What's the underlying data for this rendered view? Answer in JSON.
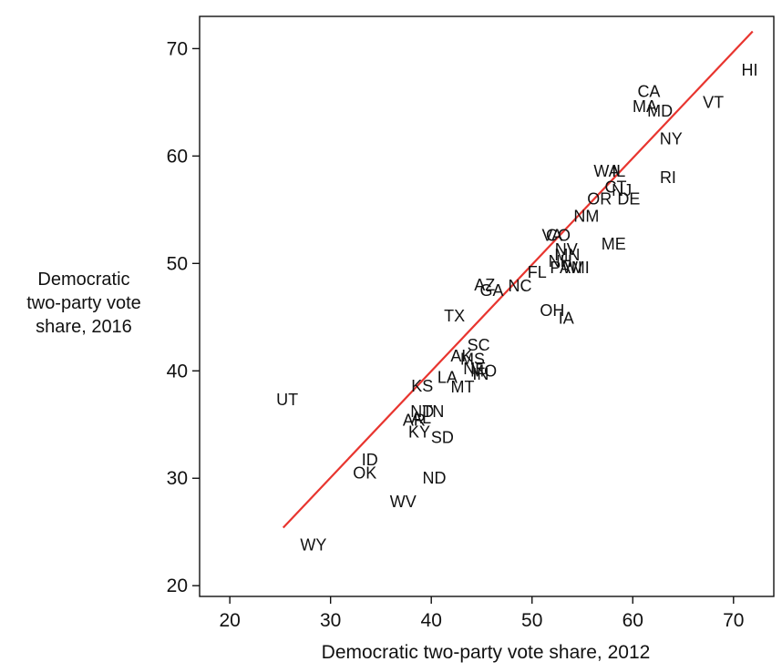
{
  "chart_data": {
    "type": "scatter",
    "title": "",
    "xlabel": "Democratic two-party vote share, 2012",
    "ylabel_lines": [
      "Democratic",
      "two-party vote",
      "share, 2016"
    ],
    "xlim": [
      17,
      74
    ],
    "ylim": [
      19,
      73
    ],
    "xticks": [
      20,
      30,
      40,
      50,
      60,
      70
    ],
    "yticks": [
      20,
      30,
      40,
      50,
      60,
      70
    ],
    "grid": false,
    "legend": "none",
    "marker": "state abbreviation text",
    "fit_line": {
      "color": "#e8352f",
      "from": [
        25.3,
        25.4
      ],
      "to": [
        71.9,
        71.6
      ]
    },
    "points": [
      {
        "label": "HI",
        "x": 71.6,
        "y": 68.0
      },
      {
        "label": "VT",
        "x": 68.0,
        "y": 65.0
      },
      {
        "label": "CA",
        "x": 61.6,
        "y": 66.0
      },
      {
        "label": "MA",
        "x": 61.2,
        "y": 64.6
      },
      {
        "label": "MD",
        "x": 62.7,
        "y": 64.2
      },
      {
        "label": "NY",
        "x": 63.8,
        "y": 61.6
      },
      {
        "label": "RI",
        "x": 63.5,
        "y": 58.0
      },
      {
        "label": "WA",
        "x": 57.4,
        "y": 58.6
      },
      {
        "label": "IL",
        "x": 58.6,
        "y": 58.6
      },
      {
        "label": "CT",
        "x": 58.3,
        "y": 57.1
      },
      {
        "label": "NJ",
        "x": 58.9,
        "y": 56.8
      },
      {
        "label": "DE",
        "x": 59.6,
        "y": 56.0
      },
      {
        "label": "OR",
        "x": 56.7,
        "y": 56.0
      },
      {
        "label": "NM",
        "x": 55.4,
        "y": 54.4
      },
      {
        "label": "ME",
        "x": 58.1,
        "y": 51.8
      },
      {
        "label": "VA",
        "x": 52.0,
        "y": 52.6
      },
      {
        "label": "CO",
        "x": 52.6,
        "y": 52.6
      },
      {
        "label": "NV",
        "x": 53.4,
        "y": 51.3
      },
      {
        "label": "MN",
        "x": 53.5,
        "y": 50.8
      },
      {
        "label": "NH",
        "x": 52.8,
        "y": 50.2
      },
      {
        "label": "PA",
        "x": 52.8,
        "y": 49.6
      },
      {
        "label": "WI",
        "x": 54.0,
        "y": 49.6
      },
      {
        "label": "MI",
        "x": 54.8,
        "y": 49.6
      },
      {
        "label": "FL",
        "x": 50.5,
        "y": 49.2
      },
      {
        "label": "AZ",
        "x": 45.3,
        "y": 48.0
      },
      {
        "label": "GA",
        "x": 46.0,
        "y": 47.5
      },
      {
        "label": "NC",
        "x": 48.8,
        "y": 47.9
      },
      {
        "label": "OH",
        "x": 52.0,
        "y": 45.6
      },
      {
        "label": "IA",
        "x": 53.4,
        "y": 44.9
      },
      {
        "label": "TX",
        "x": 42.3,
        "y": 45.1
      },
      {
        "label": "SC",
        "x": 44.7,
        "y": 42.4
      },
      {
        "label": "AK",
        "x": 43.0,
        "y": 41.4
      },
      {
        "label": "MS",
        "x": 44.1,
        "y": 41.1
      },
      {
        "label": "MO",
        "x": 45.2,
        "y": 40.0
      },
      {
        "label": "IN",
        "x": 44.9,
        "y": 39.7
      },
      {
        "label": "NE",
        "x": 44.3,
        "y": 40.2
      },
      {
        "label": "LA",
        "x": 41.6,
        "y": 39.4
      },
      {
        "label": "MT",
        "x": 43.1,
        "y": 38.5
      },
      {
        "label": "KS",
        "x": 39.1,
        "y": 38.6
      },
      {
        "label": "UT",
        "x": 25.7,
        "y": 37.3
      },
      {
        "label": "TN",
        "x": 40.2,
        "y": 36.2
      },
      {
        "label": "ND",
        "x": 39.1,
        "y": 36.2
      },
      {
        "label": "AR",
        "x": 38.3,
        "y": 35.4
      },
      {
        "label": "AL",
        "x": 39.0,
        "y": 35.6
      },
      {
        "label": "KY",
        "x": 38.8,
        "y": 34.3
      },
      {
        "label": "SD",
        "x": 41.1,
        "y": 33.8
      },
      {
        "label": "ID",
        "x": 33.9,
        "y": 31.7
      },
      {
        "label": "OK",
        "x": 33.4,
        "y": 30.5
      },
      {
        "label": "ND",
        "x": 40.3,
        "y": 30.0
      },
      {
        "label": "WV",
        "x": 37.2,
        "y": 27.8
      },
      {
        "label": "WY",
        "x": 28.3,
        "y": 23.8
      }
    ],
    "colors": {
      "fit_line": "#e8352f",
      "text": "#111111",
      "axis": "#111111",
      "background": "#ffffff"
    }
  }
}
